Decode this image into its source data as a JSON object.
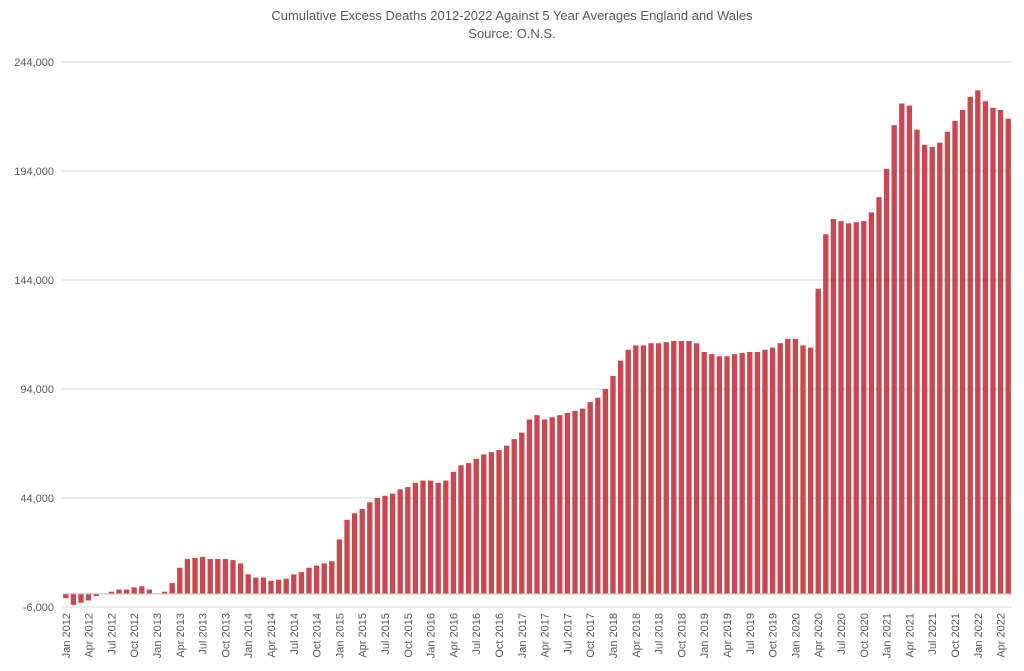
{
  "chart_data": {
    "type": "bar",
    "title": "Cumulative Excess Deaths 2012-2022 Against 5 Year Averages England and Wales",
    "subtitle": "Source: O.N.S.",
    "color": "#c9474e",
    "grid": true,
    "ylim": [
      -6000,
      244000
    ],
    "yticks": [
      {
        "value": -6000,
        "label": "-6,000"
      },
      {
        "value": 44000,
        "label": "44,000"
      },
      {
        "value": 94000,
        "label": "94,000"
      },
      {
        "value": 144000,
        "label": "144,000"
      },
      {
        "value": 194000,
        "label": "194,000"
      },
      {
        "value": 244000,
        "label": "244,000"
      }
    ],
    "categories": [
      "Jan 2012",
      null,
      null,
      "Apr 2012",
      null,
      null,
      "Jul 2012",
      null,
      null,
      "Oct 2012",
      null,
      null,
      "Jan 2013",
      null,
      null,
      "Apr 2013",
      null,
      null,
      "Jul 2013",
      null,
      null,
      "Oct 2013",
      null,
      null,
      "Jan 2014",
      null,
      null,
      "Apr 2014",
      null,
      null,
      "Jul 2014",
      null,
      null,
      "Oct 2014",
      null,
      null,
      "Jan 2015",
      null,
      null,
      "Apr 2015",
      null,
      null,
      "Jul 2015",
      null,
      null,
      "Oct 2015",
      null,
      null,
      "Jan 2016",
      null,
      null,
      "Apr 2016",
      null,
      null,
      "Jul 2016",
      null,
      null,
      "Oct 2016",
      null,
      null,
      "Jan 2017",
      null,
      null,
      "Apr 2017",
      null,
      null,
      "Jul 2017",
      null,
      null,
      "Oct 2017",
      null,
      null,
      "Jan 2018",
      null,
      null,
      "Apr 2018",
      null,
      null,
      "Jul 2018",
      null,
      null,
      "Oct 2018",
      null,
      null,
      "Jan 2019",
      null,
      null,
      "Apr 2019",
      null,
      null,
      "Jul 2019",
      null,
      null,
      "Oct 2019",
      null,
      null,
      "Jan 2020",
      null,
      null,
      "Apr 2020",
      null,
      null,
      "Jul 2020",
      null,
      null,
      "Oct 2020",
      null,
      null,
      "Jan 2021",
      null,
      null,
      "Apr 2021",
      null,
      null,
      "Jul 2021",
      null,
      null,
      "Oct 2021",
      null,
      null,
      "Jan 2022",
      null,
      null,
      "Apr 2022",
      null
    ],
    "values": [
      -2000,
      -5000,
      -4000,
      -3000,
      -1000,
      0,
      1000,
      2000,
      2000,
      3000,
      3500,
      2000,
      0,
      1000,
      5000,
      12000,
      16000,
      16500,
      17000,
      16000,
      16000,
      16000,
      15500,
      14000,
      9000,
      7500,
      7500,
      6000,
      6500,
      7000,
      9000,
      10000,
      12000,
      13000,
      14000,
      15000,
      25000,
      34000,
      37000,
      39000,
      42000,
      44000,
      45000,
      46000,
      48000,
      49000,
      51000,
      52000,
      52000,
      51000,
      52000,
      56000,
      59000,
      60000,
      62000,
      64000,
      65000,
      66000,
      68000,
      71000,
      74000,
      80000,
      82000,
      80000,
      81000,
      82000,
      83000,
      84000,
      85000,
      88000,
      90000,
      94000,
      100000,
      107000,
      112000,
      114000,
      114000,
      115000,
      115000,
      115500,
      116000,
      116000,
      116000,
      115000,
      111000,
      110000,
      109000,
      109000,
      110000,
      110500,
      111000,
      111000,
      112000,
      113000,
      115000,
      117000,
      117000,
      114000,
      113000,
      140000,
      165000,
      172000,
      171000,
      170000,
      170500,
      171000,
      175000,
      182000,
      195000,
      215000,
      225000,
      224000,
      213000,
      206000,
      205000,
      207000,
      212000,
      217000,
      222000,
      228000,
      231000,
      226000,
      223000,
      222000,
      218000
    ]
  }
}
